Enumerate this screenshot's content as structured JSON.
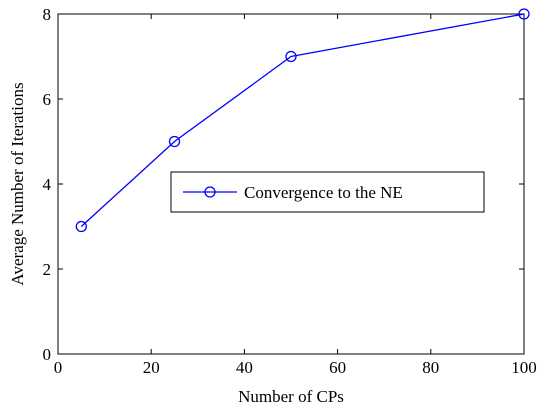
{
  "chart_data": {
    "type": "line",
    "xlabel": "Number of CPs",
    "ylabel": "Average Number of Iterations",
    "xlim": [
      0,
      100
    ],
    "ylim": [
      0,
      8
    ],
    "xticks": [
      0,
      20,
      40,
      60,
      80,
      100
    ],
    "yticks": [
      0,
      2,
      4,
      6,
      8
    ],
    "grid": false,
    "legend_position": "center-right",
    "series": [
      {
        "name": "Convergence to the NE",
        "color": "#0000ff",
        "marker": "circle",
        "x": [
          5,
          25,
          50,
          100
        ],
        "y": [
          3,
          5,
          7,
          8
        ]
      }
    ]
  }
}
